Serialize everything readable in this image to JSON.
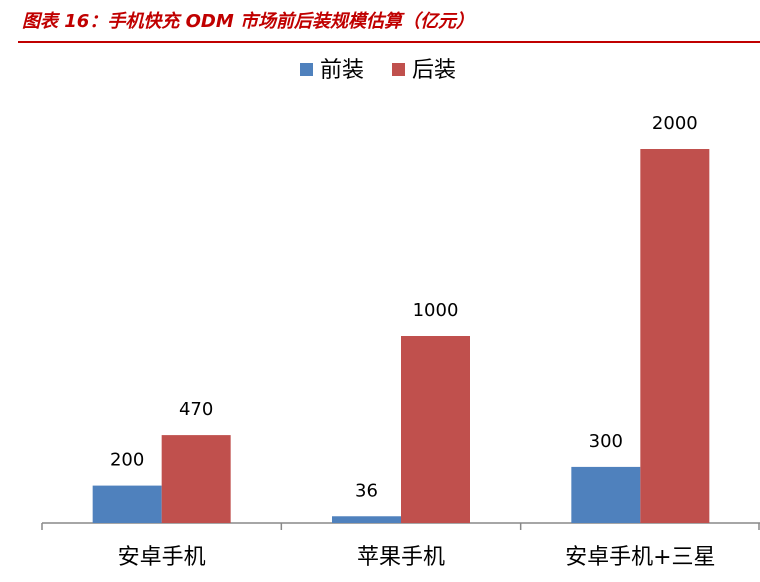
{
  "chart_data": {
    "type": "bar",
    "title": "图表 16：手机快充 ODM 市场前后装规模估算（亿元）",
    "categories": [
      "安卓手机",
      "苹果手机",
      "安卓手机+三星"
    ],
    "series": [
      {
        "name": "前装",
        "color": "#4f81bd",
        "values": [
          200,
          36,
          300
        ]
      },
      {
        "name": "后装",
        "color": "#c0504d",
        "values": [
          470,
          1000,
          2000
        ]
      }
    ],
    "legend": "top"
  }
}
